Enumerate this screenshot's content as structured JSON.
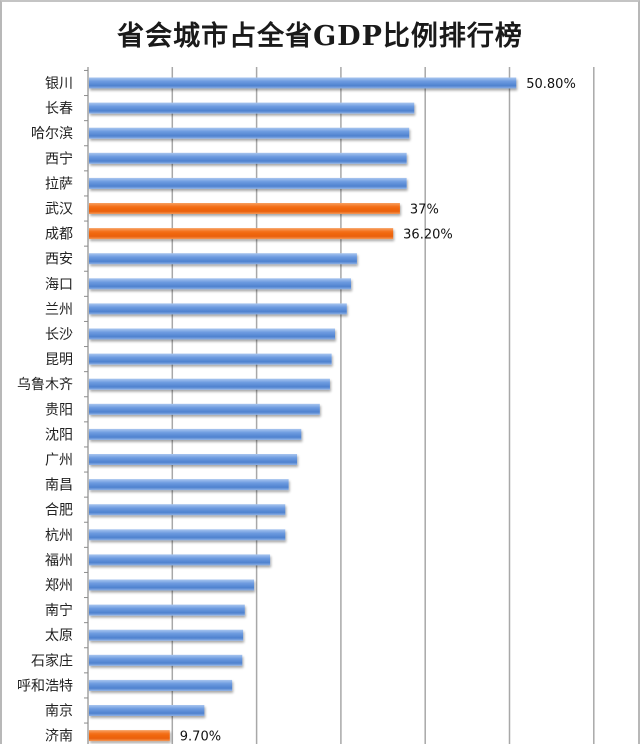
{
  "chart_data": {
    "type": "bar",
    "orientation": "horizontal",
    "title": "省会城市占全省GDP比例排行榜",
    "xlabel": "",
    "ylabel": "",
    "xlim": [
      0,
      60
    ],
    "x_tick_step": 10,
    "grid": true,
    "legend": "none",
    "unit": "%",
    "categories": [
      "银川",
      "长春",
      "哈尔滨",
      "西宁",
      "拉萨",
      "武汉",
      "成都",
      "西安",
      "海口",
      "兰州",
      "长沙",
      "昆明",
      "乌鲁木齐",
      "贵阳",
      "沈阳",
      "广州",
      "南昌",
      "合肥",
      "杭州",
      "福州",
      "郑州",
      "南宁",
      "太原",
      "石家庄",
      "呼和浩特",
      "南京",
      "济南"
    ],
    "values": [
      50.8,
      38.7,
      38.1,
      37.8,
      37.8,
      37.0,
      36.2,
      31.9,
      31.2,
      30.7,
      29.3,
      28.9,
      28.7,
      27.5,
      25.3,
      24.8,
      23.8,
      23.4,
      23.4,
      21.6,
      19.7,
      18.6,
      18.4,
      18.3,
      17.1,
      13.8,
      9.7
    ],
    "highlighted": [
      "武汉",
      "成都",
      "济南"
    ],
    "data_labels": [
      {
        "category": "银川",
        "text": "50.80%"
      },
      {
        "category": "武汉",
        "text": "37%"
      },
      {
        "category": "成都",
        "text": "36.20%"
      },
      {
        "category": "济南",
        "text": "9.70%"
      }
    ],
    "colors": {
      "bar": "#5b8fd6",
      "bar_highlight": "#f26b13",
      "grid": "#a8a8a8",
      "axis": "#8c8c8c"
    }
  }
}
